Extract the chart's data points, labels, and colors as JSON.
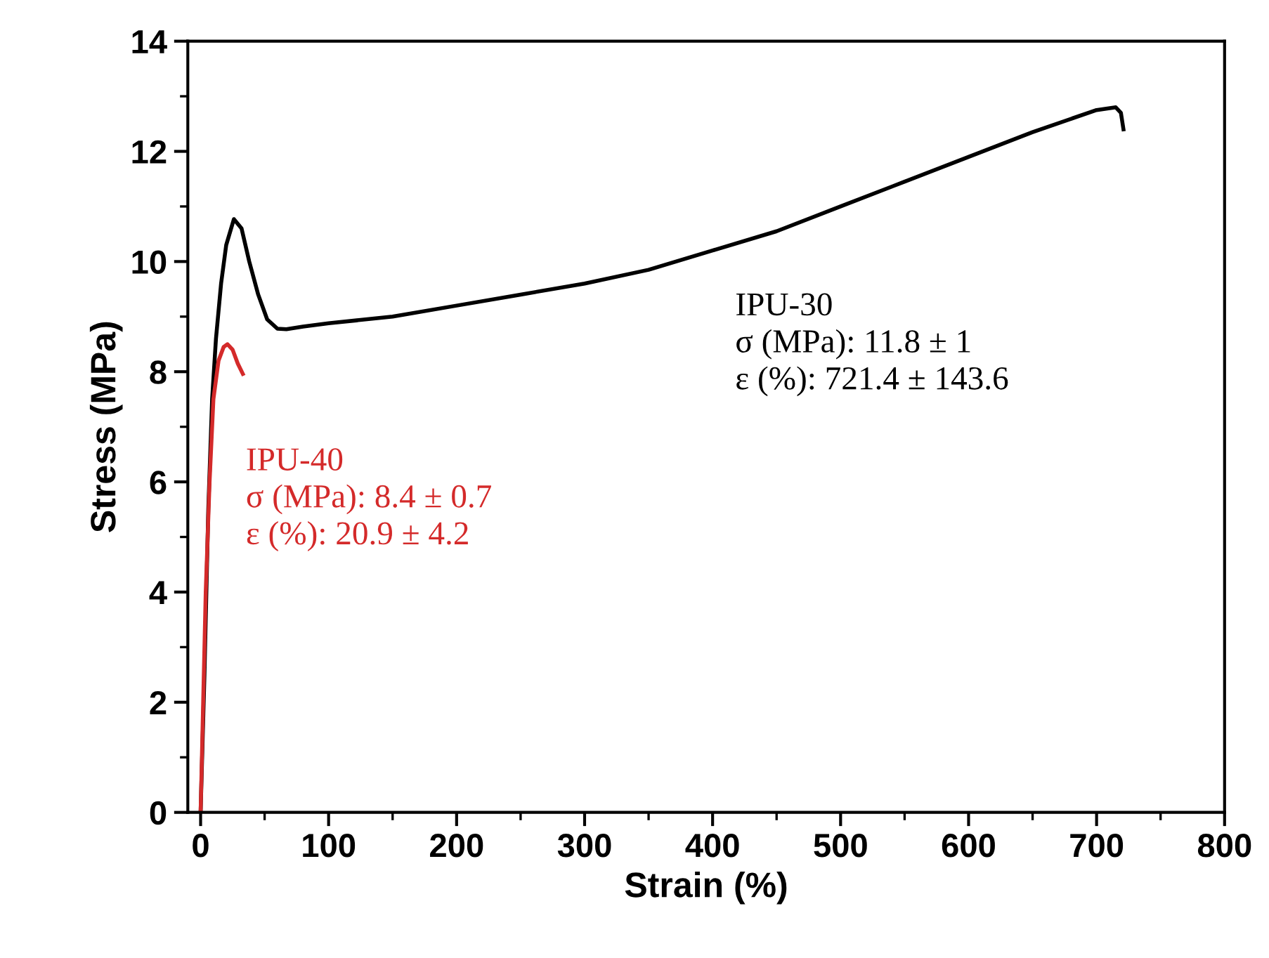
{
  "chart_data": {
    "type": "line",
    "xlabel": "Strain (%)",
    "ylabel": "Stress (MPa)",
    "xlim": [
      -10,
      800
    ],
    "ylim": [
      0,
      14
    ],
    "xticks": [
      0,
      100,
      200,
      300,
      400,
      500,
      600,
      700,
      800
    ],
    "yticks": [
      0,
      2,
      4,
      6,
      8,
      10,
      12,
      14
    ],
    "grid": false,
    "legend": false,
    "marker": "none",
    "line_style": "solid",
    "series": [
      {
        "color": "#000000",
        "x": [
          0,
          3,
          6,
          9,
          12,
          16,
          20,
          26,
          32,
          38,
          45,
          52,
          60,
          67,
          80,
          100,
          150,
          200,
          250,
          300,
          350,
          400,
          450,
          500,
          550,
          600,
          650,
          700,
          715,
          719,
          721
        ],
        "values": [
          0,
          2.5,
          5.5,
          7.5,
          8.6,
          9.6,
          10.3,
          10.77,
          10.6,
          10.0,
          9.4,
          8.95,
          8.78,
          8.77,
          8.82,
          8.88,
          9.0,
          9.2,
          9.4,
          9.6,
          9.85,
          10.2,
          10.55,
          11.0,
          11.45,
          11.9,
          12.35,
          12.75,
          12.8,
          12.7,
          12.4
        ]
      },
      {
        "color": "#d42a2a",
        "x": [
          0,
          2,
          4,
          7,
          10,
          14,
          18,
          21,
          25,
          29,
          33
        ],
        "values": [
          0,
          2,
          4,
          6,
          7.5,
          8.2,
          8.45,
          8.5,
          8.4,
          8.15,
          7.96
        ]
      }
    ],
    "annotations": [
      "IPU-30\nσ (MPa): 11.8 ± 1\nε (%): 721.4 ± 143.6",
      "IPU-40\nσ (MPa): 8.4 ± 0.7\nε (%): 20.9 ± 4.2"
    ]
  }
}
